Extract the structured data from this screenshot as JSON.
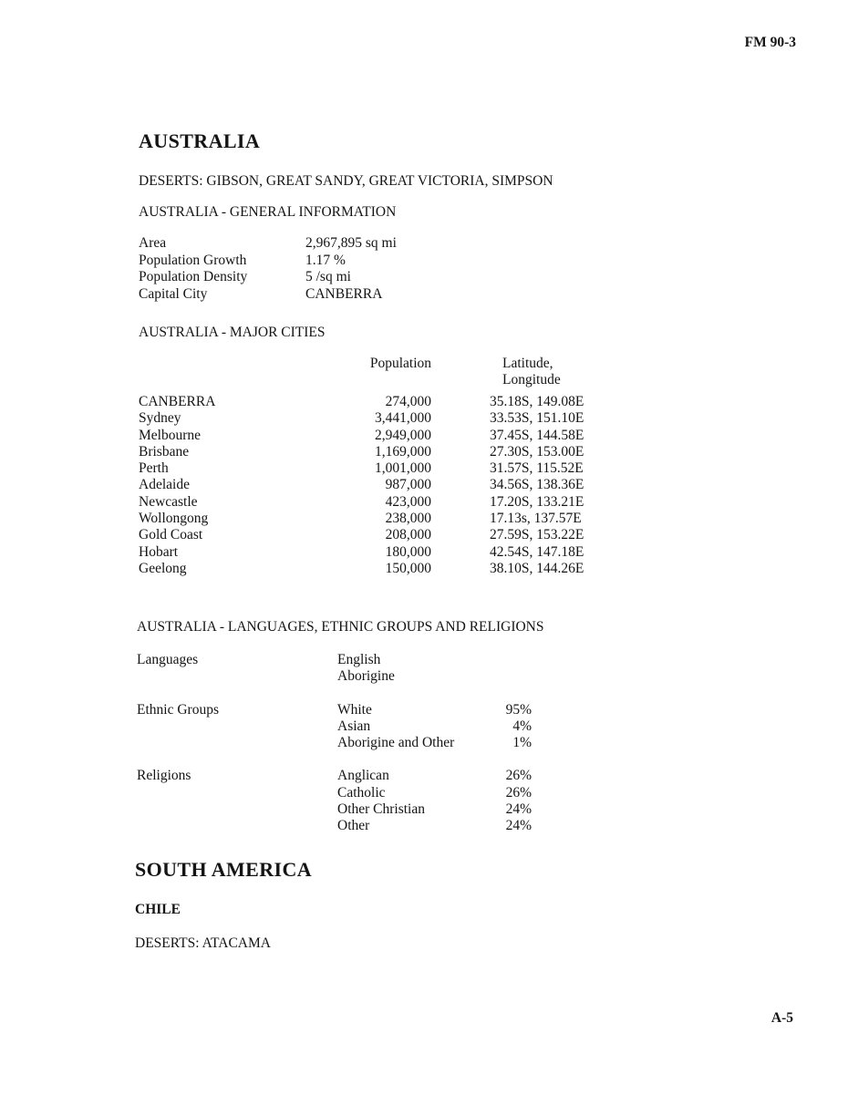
{
  "page": {
    "doc_ref": "FM 90-3",
    "page_number": "A-5"
  },
  "australia": {
    "heading": "AUSTRALIA",
    "deserts_line": "DESERTS: GIBSON, GREAT SANDY, GREAT VICTORIA, SIMPSON",
    "general_info": {
      "title": "AUSTRALIA - GENERAL INFORMATION",
      "rows": [
        {
          "label": "Area",
          "value": "2,967,895 sq mi"
        },
        {
          "label": "Population Growth",
          "value": "1.17 %"
        },
        {
          "label": "Population Density",
          "value": "5 /sq mi"
        },
        {
          "label": "Capital City",
          "value": "CANBERRA"
        }
      ]
    },
    "major_cities": {
      "title": "AUSTRALIA - MAJOR CITIES",
      "columns": {
        "population": "Population",
        "latlong_line1": "Latitude,",
        "latlong_line2": "Longitude"
      },
      "rows": [
        {
          "city": "CANBERRA",
          "population": "274,000",
          "latlong": "35.18S, 149.08E"
        },
        {
          "city": "Sydney",
          "population": "3,441,000",
          "latlong": "33.53S, 151.10E"
        },
        {
          "city": "Melbourne",
          "population": "2,949,000",
          "latlong": "37.45S, 144.58E"
        },
        {
          "city": "Brisbane",
          "population": "1,169,000",
          "latlong": "27.30S, 153.00E"
        },
        {
          "city": "Perth",
          "population": "1,001,000",
          "latlong": "31.57S, 115.52E"
        },
        {
          "city": "Adelaide",
          "population": "987,000",
          "latlong": "34.56S, 138.36E"
        },
        {
          "city": "Newcastle",
          "population": "423,000",
          "latlong": "17.20S, 133.21E"
        },
        {
          "city": "Wollongong",
          "population": "238,000",
          "latlong": "17.13s, 137.57E"
        },
        {
          "city": "Gold Coast",
          "population": "208,000",
          "latlong": "27.59S, 153.22E"
        },
        {
          "city": "Hobart",
          "population": "180,000",
          "latlong": "42.54S, 147.18E"
        },
        {
          "city": "Geelong",
          "population": "150,000",
          "latlong": "38.10S, 144.26E"
        }
      ]
    },
    "demographics": {
      "title": "AUSTRALIA - LANGUAGES, ETHNIC GROUPS AND RELIGIONS",
      "groups": [
        {
          "label": "Languages",
          "items": [
            {
              "name": "English",
              "value": ""
            },
            {
              "name": "Aborigine",
              "value": ""
            }
          ]
        },
        {
          "label": "Ethnic Groups",
          "items": [
            {
              "name": "White",
              "value": "95%"
            },
            {
              "name": "Asian",
              "value": "4%"
            },
            {
              "name": "Aborigine and Other",
              "value": "1%"
            }
          ]
        },
        {
          "label": "Religions",
          "items": [
            {
              "name": "Anglican",
              "value": "26%"
            },
            {
              "name": "Catholic",
              "value": "26%"
            },
            {
              "name": "Other Christian",
              "value": "24%"
            },
            {
              "name": "Other",
              "value": "24%"
            }
          ]
        }
      ]
    }
  },
  "south_america": {
    "heading": "SOUTH AMERICA",
    "chile": {
      "country": "CHILE",
      "deserts_line": "DESERTS: ATACAMA"
    }
  }
}
